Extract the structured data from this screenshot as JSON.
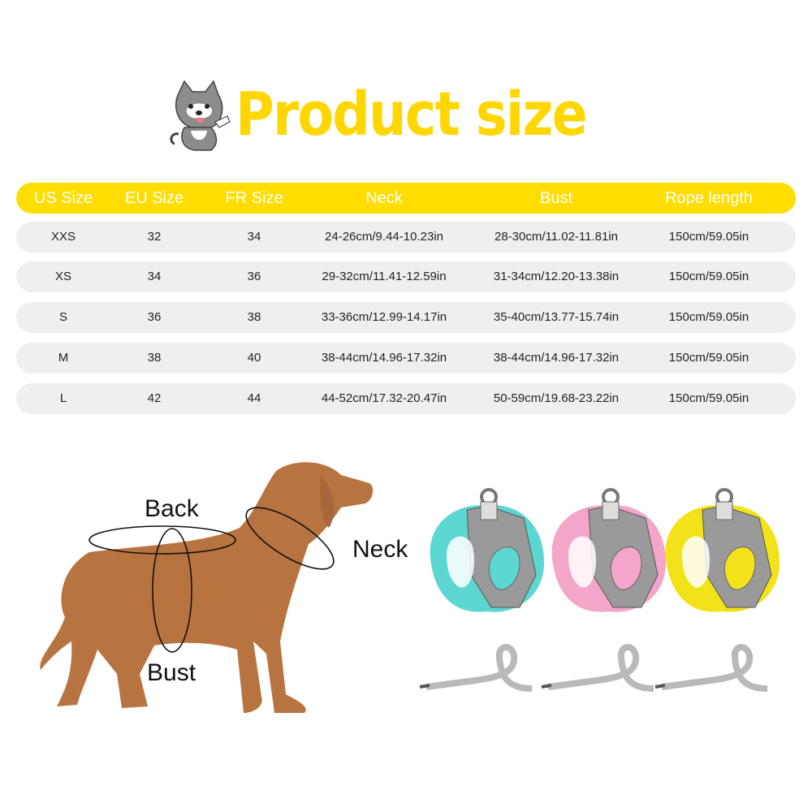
{
  "title": "Product size",
  "colors": {
    "accent": "#FFDD00",
    "row_bg": "#EFEFEF",
    "dog": "#B87440"
  },
  "table": {
    "headers": [
      "US Size",
      "EU Size",
      "FR Size",
      "Neck",
      "Bust",
      "Rope length"
    ],
    "rows": [
      [
        "XXS",
        "32",
        "34",
        "24-26cm/9.44-10.23in",
        "28-30cm/11.02-11.81in",
        "150cm/59.05in"
      ],
      [
        "XS",
        "34",
        "36",
        "29-32cm/11.41-12.59in",
        "31-34cm/12.20-13.38in",
        "150cm/59.05in"
      ],
      [
        "S",
        "36",
        "38",
        "33-36cm/12.99-14.17in",
        "35-40cm/13.77-15.74in",
        "150cm/59.05in"
      ],
      [
        "M",
        "38",
        "40",
        "38-44cm/14.96-17.32in",
        "38-44cm/14.96-17.32in",
        "150cm/59.05in"
      ],
      [
        "L",
        "42",
        "44",
        "44-52cm/17.32-20.47in",
        "50-59cm/19.68-23.22in",
        "150cm/59.05in"
      ]
    ]
  },
  "diagram": {
    "back_label": "Back",
    "neck_label": "Neck",
    "bust_label": "Bust"
  },
  "products": {
    "harness_colors": [
      "#5CD6D0",
      "#F4A6C8",
      "#F2E21A"
    ],
    "leash_color": "#B9B9B9"
  }
}
